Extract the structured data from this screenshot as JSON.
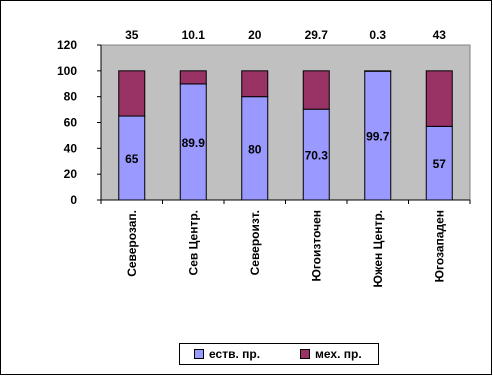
{
  "chart_data": {
    "type": "bar",
    "stacked": true,
    "categories": [
      "Северозап.",
      "Сев Центр.",
      "Североизт.",
      "Югоизточен",
      "Южен Центр.",
      "Югозападен"
    ],
    "series": [
      {
        "name": "еств. пр.",
        "color": "#9999FF",
        "values": [
          65,
          89.9,
          80,
          70.3,
          99.7,
          57
        ]
      },
      {
        "name": "мех. пр.",
        "color": "#993366",
        "values": [
          35,
          10.1,
          20,
          29.7,
          0.3,
          43
        ]
      }
    ],
    "ylim": [
      0,
      120
    ],
    "yticks": [
      0,
      20,
      40,
      60,
      80,
      100,
      120
    ],
    "grid": false,
    "plot_background": "#C0C0C0",
    "legend_position": "bottom",
    "title": "",
    "xlabel": "",
    "ylabel": ""
  }
}
